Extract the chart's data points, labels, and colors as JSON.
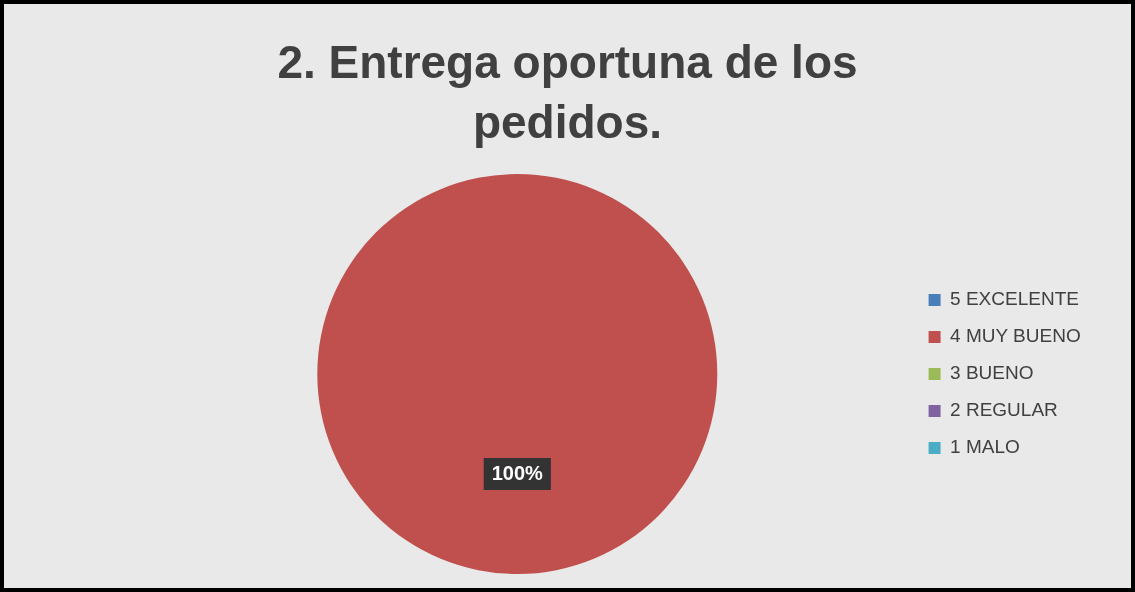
{
  "chart_data": {
    "type": "pie",
    "title": "2.  Entrega oportuna de los pedidos.",
    "categories": [
      "5 EXCELENTE",
      "4 MUY BUENO",
      "3 BUENO",
      "2 REGULAR",
      "1 MALO"
    ],
    "values": [
      0,
      100,
      0,
      0,
      0
    ],
    "colors": [
      "#4a7ebb",
      "#c0504d",
      "#9bbb59",
      "#8064a2",
      "#4bacc6"
    ],
    "value_labels": [
      null,
      "100%",
      null,
      null,
      null
    ],
    "legend": "right"
  }
}
